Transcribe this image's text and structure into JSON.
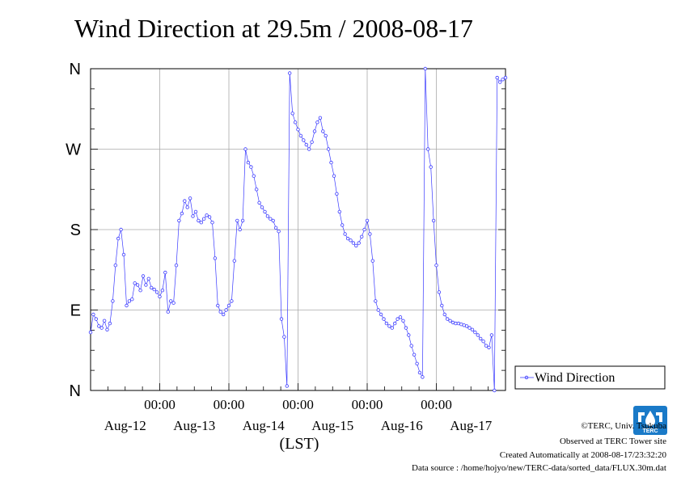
{
  "chart_data": {
    "type": "line",
    "title": "Wind Direction at 29.5m / 2008-08-17",
    "xlabel": "(LST)",
    "ylabel": "",
    "y_ticks": [
      "N",
      "E",
      "S",
      "W",
      "N"
    ],
    "ylim": [
      0,
      360
    ],
    "x_unit": "day",
    "xlim": [
      0,
      6
    ],
    "x_time_ticks": [
      "00:00",
      "00:00",
      "00:00",
      "00:00",
      "00:00"
    ],
    "x_date_ticks": [
      "Aug-12",
      "Aug-13",
      "Aug-14",
      "Aug-15",
      "Aug-16",
      "Aug-17"
    ],
    "grid": true,
    "legend_position": "right",
    "series": [
      {
        "name": "Wind Direction",
        "color": "#3a3aff",
        "points": [
          [
            0.0,
            65
          ],
          [
            0.04,
            85
          ],
          [
            0.08,
            80
          ],
          [
            0.12,
            72
          ],
          [
            0.16,
            70
          ],
          [
            0.2,
            78
          ],
          [
            0.24,
            68
          ],
          [
            0.28,
            75
          ],
          [
            0.32,
            100
          ],
          [
            0.36,
            140
          ],
          [
            0.4,
            170
          ],
          [
            0.44,
            180
          ],
          [
            0.48,
            152
          ],
          [
            0.52,
            95
          ],
          [
            0.56,
            100
          ],
          [
            0.6,
            102
          ],
          [
            0.64,
            120
          ],
          [
            0.68,
            118
          ],
          [
            0.72,
            112
          ],
          [
            0.76,
            128
          ],
          [
            0.8,
            118
          ],
          [
            0.84,
            125
          ],
          [
            0.88,
            115
          ],
          [
            0.92,
            113
          ],
          [
            0.96,
            110
          ],
          [
            1.0,
            105
          ],
          [
            1.04,
            112
          ],
          [
            1.08,
            132
          ],
          [
            1.12,
            88
          ],
          [
            1.16,
            100
          ],
          [
            1.2,
            98
          ],
          [
            1.24,
            140
          ],
          [
            1.28,
            190
          ],
          [
            1.32,
            198
          ],
          [
            1.36,
            212
          ],
          [
            1.4,
            205
          ],
          [
            1.44,
            215
          ],
          [
            1.48,
            195
          ],
          [
            1.52,
            200
          ],
          [
            1.56,
            190
          ],
          [
            1.6,
            188
          ],
          [
            1.64,
            192
          ],
          [
            1.68,
            196
          ],
          [
            1.72,
            194
          ],
          [
            1.76,
            188
          ],
          [
            1.8,
            148
          ],
          [
            1.84,
            95
          ],
          [
            1.88,
            88
          ],
          [
            1.92,
            85
          ],
          [
            1.96,
            90
          ],
          [
            2.0,
            95
          ],
          [
            2.04,
            100
          ],
          [
            2.08,
            145
          ],
          [
            2.12,
            190
          ],
          [
            2.16,
            180
          ],
          [
            2.2,
            190
          ],
          [
            2.24,
            270
          ],
          [
            2.28,
            255
          ],
          [
            2.32,
            250
          ],
          [
            2.36,
            240
          ],
          [
            2.4,
            225
          ],
          [
            2.44,
            210
          ],
          [
            2.48,
            205
          ],
          [
            2.52,
            200
          ],
          [
            2.56,
            195
          ],
          [
            2.6,
            192
          ],
          [
            2.64,
            190
          ],
          [
            2.68,
            182
          ],
          [
            2.72,
            178
          ],
          [
            2.76,
            80
          ],
          [
            2.8,
            60
          ],
          [
            2.84,
            5
          ],
          [
            2.88,
            355
          ],
          [
            2.92,
            310
          ],
          [
            2.96,
            300
          ],
          [
            3.0,
            292
          ],
          [
            3.04,
            285
          ],
          [
            3.08,
            280
          ],
          [
            3.12,
            275
          ],
          [
            3.16,
            270
          ],
          [
            3.2,
            278
          ],
          [
            3.24,
            290
          ],
          [
            3.28,
            300
          ],
          [
            3.32,
            305
          ],
          [
            3.36,
            290
          ],
          [
            3.4,
            285
          ],
          [
            3.44,
            270
          ],
          [
            3.48,
            255
          ],
          [
            3.52,
            240
          ],
          [
            3.56,
            220
          ],
          [
            3.6,
            200
          ],
          [
            3.64,
            185
          ],
          [
            3.68,
            175
          ],
          [
            3.72,
            170
          ],
          [
            3.76,
            168
          ],
          [
            3.8,
            165
          ],
          [
            3.84,
            162
          ],
          [
            3.88,
            165
          ],
          [
            3.92,
            172
          ],
          [
            3.96,
            180
          ],
          [
            4.0,
            190
          ],
          [
            4.04,
            175
          ],
          [
            4.08,
            145
          ],
          [
            4.12,
            100
          ],
          [
            4.16,
            90
          ],
          [
            4.2,
            85
          ],
          [
            4.24,
            80
          ],
          [
            4.28,
            75
          ],
          [
            4.32,
            72
          ],
          [
            4.36,
            70
          ],
          [
            4.4,
            75
          ],
          [
            4.44,
            80
          ],
          [
            4.48,
            82
          ],
          [
            4.52,
            78
          ],
          [
            4.56,
            70
          ],
          [
            4.6,
            62
          ],
          [
            4.64,
            50
          ],
          [
            4.68,
            40
          ],
          [
            4.72,
            30
          ],
          [
            4.76,
            20
          ],
          [
            4.8,
            15
          ],
          [
            4.84,
            360
          ],
          [
            4.88,
            270
          ],
          [
            4.92,
            250
          ],
          [
            4.96,
            190
          ],
          [
            5.0,
            140
          ],
          [
            5.04,
            110
          ],
          [
            5.08,
            95
          ],
          [
            5.12,
            85
          ],
          [
            5.16,
            80
          ],
          [
            5.2,
            78
          ],
          [
            5.24,
            76
          ],
          [
            5.28,
            75
          ],
          [
            5.32,
            75
          ],
          [
            5.36,
            74
          ],
          [
            5.4,
            73
          ],
          [
            5.44,
            72
          ],
          [
            5.48,
            70
          ],
          [
            5.52,
            68
          ],
          [
            5.56,
            65
          ],
          [
            5.6,
            62
          ],
          [
            5.64,
            58
          ],
          [
            5.68,
            55
          ],
          [
            5.72,
            50
          ],
          [
            5.76,
            48
          ],
          [
            5.8,
            62
          ],
          [
            5.84,
            0
          ],
          [
            5.88,
            350
          ],
          [
            5.92,
            345
          ],
          [
            5.96,
            348
          ],
          [
            6.0,
            350
          ]
        ]
      }
    ]
  },
  "footer": {
    "copyright": "©TERC, Univ. Tsukuba",
    "observed": "Observed at TERC Tower site",
    "created": "Created Automatically at 2008-08-17/23:32:20",
    "source": "Data source : /home/hojyo/new/TERC-data/sorted_data/FLUX.30m.dat"
  },
  "logo": {
    "text": "TERC",
    "color": "#1a7ac8"
  }
}
